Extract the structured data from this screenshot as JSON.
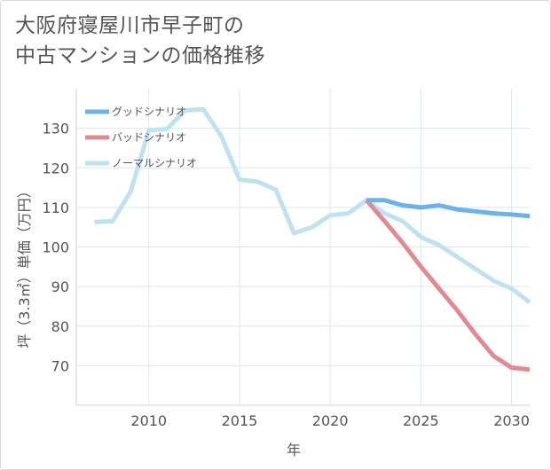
{
  "title_line1": "大阪府寝屋川市早子町の",
  "title_line2": "中古マンションの価格推移",
  "chart_data": {
    "type": "line",
    "title": "大阪府寝屋川市早子町の中古マンションの価格推移",
    "xlabel": "年",
    "ylabel": "坪（3.3㎡）単価（万円）",
    "xlim": [
      2006,
      2031
    ],
    "ylim": [
      60,
      140
    ],
    "xticks": [
      2010,
      2015,
      2020,
      2025,
      2030
    ],
    "yticks": [
      70,
      80,
      90,
      100,
      110,
      120,
      130
    ],
    "grid": true,
    "legend_position": "top-left",
    "series": [
      {
        "name": "グッドシナリオ",
        "color": "#6db3ea",
        "x": [
          2022,
          2023,
          2024,
          2025,
          2026,
          2027,
          2028,
          2029,
          2030,
          2031
        ],
        "y": [
          111.8,
          111.8,
          110.5,
          110.0,
          110.5,
          109.5,
          109.0,
          108.5,
          108.2,
          107.8
        ]
      },
      {
        "name": "バッドシナリオ",
        "color": "#de8b93",
        "x": [
          2022,
          2023,
          2024,
          2025,
          2026,
          2027,
          2028,
          2029,
          2030,
          2031
        ],
        "y": [
          111.8,
          106.5,
          101.0,
          95.0,
          89.5,
          84.0,
          78.0,
          72.5,
          69.5,
          69.0
        ]
      },
      {
        "name": "ノーマルシナリオ",
        "color": "#c0e1ee",
        "x": [
          2007,
          2008,
          2009,
          2010,
          2011,
          2012,
          2013,
          2014,
          2015,
          2016,
          2017,
          2018,
          2019,
          2020,
          2021,
          2022,
          2023,
          2024,
          2025,
          2026,
          2027,
          2028,
          2029,
          2030,
          2031
        ],
        "y": [
          106.3,
          106.5,
          114.0,
          129.5,
          129.8,
          134.5,
          134.8,
          128.0,
          117.0,
          116.5,
          114.5,
          103.5,
          105.0,
          108.0,
          108.5,
          111.8,
          108.5,
          106.5,
          102.5,
          100.5,
          97.5,
          94.5,
          91.5,
          89.5,
          86.0
        ]
      }
    ]
  }
}
